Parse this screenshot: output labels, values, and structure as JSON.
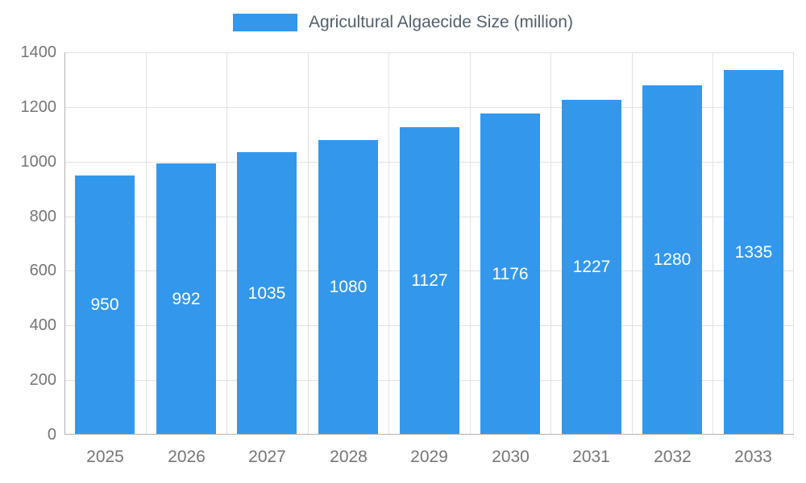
{
  "legend": {
    "label": "Agricultural Algaecide Size (million)"
  },
  "colors": {
    "bar": "#3398ec",
    "value_label": "#ffffff",
    "gridline": "#e2e2e2",
    "axis_line": "#b3b3b3",
    "tick_text": "#767676",
    "legend_text": "#52616d"
  },
  "chart_data": {
    "type": "bar",
    "title": "Agricultural Algaecide Size (million)",
    "categories": [
      "2025",
      "2026",
      "2027",
      "2028",
      "2029",
      "2030",
      "2031",
      "2032",
      "2033"
    ],
    "values": [
      950,
      992,
      1035,
      1080,
      1127,
      1176,
      1227,
      1280,
      1335
    ],
    "xlabel": "",
    "ylabel": "",
    "ylim": [
      0,
      1400
    ],
    "ytick_step": 200,
    "grid": true,
    "legend_position": "top",
    "value_labels": "inside-center"
  }
}
